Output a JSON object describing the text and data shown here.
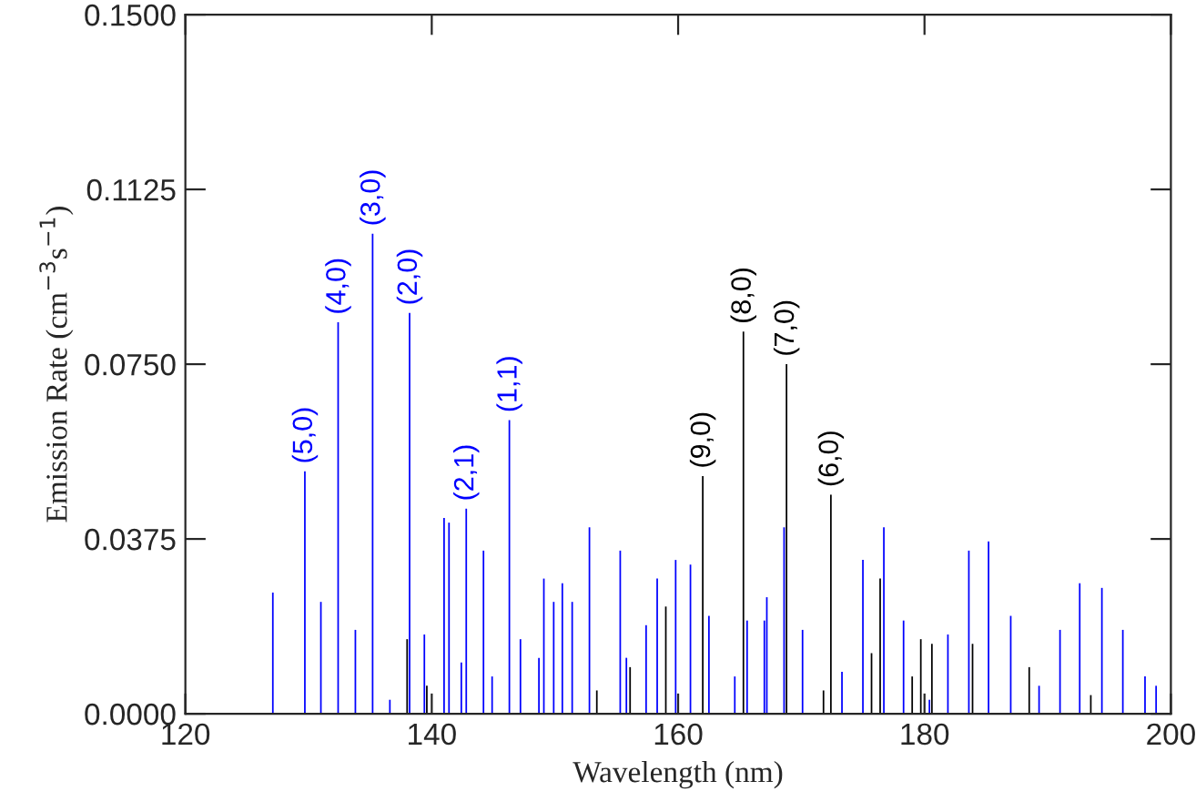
{
  "chart_data": {
    "type": "bar",
    "xlabel": "Wavelength (nm)",
    "ylabel": "Emission Rate (cm$^{−3}$s$^{−1}$)",
    "xlim": [
      120,
      200
    ],
    "xticks": [
      120,
      140,
      160,
      180,
      200
    ],
    "ylim": [
      0,
      0.15
    ],
    "yticks": [
      {
        "value": 0,
        "label": "0.0000"
      },
      {
        "value": 0.0375,
        "label": "0.0375"
      },
      {
        "value": 0.075,
        "label": "0.0750"
      },
      {
        "value": 0.1125,
        "label": "0.1125"
      },
      {
        "value": 0.15,
        "label": "0.1500"
      }
    ],
    "grid": false,
    "series": [
      {
        "color": "#0000ff",
        "x": [
          127.1,
          129.7,
          131.0,
          132.4,
          133.8,
          135.2,
          136.6,
          138.2,
          139.4,
          141.0,
          141.4,
          142.4,
          142.8,
          144.2,
          144.9,
          146.3,
          147.2,
          148.7,
          149.1,
          149.9,
          150.6,
          151.4,
          152.8,
          155.3,
          155.8,
          157.4,
          158.3,
          159.8,
          161.0,
          162.5,
          164.6,
          165.6,
          167.0,
          167.2,
          168.6,
          170.1,
          173.3,
          175.0,
          176.7,
          178.3,
          180.4,
          181.9,
          183.6,
          185.2,
          187.0,
          189.3,
          191.0,
          192.6,
          194.4,
          196.1,
          197.9,
          198.8
        ],
        "values": [
          0.026,
          0.052,
          0.024,
          0.084,
          0.018,
          0.103,
          0.003,
          0.086,
          0.017,
          0.042,
          0.041,
          0.011,
          0.044,
          0.035,
          0.008,
          0.063,
          0.016,
          0.012,
          0.029,
          0.024,
          0.028,
          0.024,
          0.04,
          0.035,
          0.012,
          0.019,
          0.029,
          0.033,
          0.032,
          0.021,
          0.008,
          0.02,
          0.02,
          0.025,
          0.04,
          0.018,
          0.009,
          0.033,
          0.04,
          0.02,
          0.003,
          0.017,
          0.035,
          0.037,
          0.021,
          0.006,
          0.018,
          0.028,
          0.027,
          0.018,
          0.008,
          0.006
        ]
      },
      {
        "color": "#000000",
        "x": [
          138.0,
          139.6,
          153.4,
          156.1,
          159.0,
          162.0,
          165.3,
          168.8,
          171.8,
          172.4,
          175.7,
          176.4,
          179.0,
          179.7,
          180.6,
          183.9,
          188.5,
          193.5
        ],
        "values": [
          0.016,
          0.006,
          0.005,
          0.01,
          0.023,
          0.051,
          0.082,
          0.075,
          0.005,
          0.047,
          0.013,
          0.029,
          0.008,
          0.016,
          0.015,
          0.015,
          0.01,
          0.004
        ]
      }
    ],
    "annotations": [
      {
        "text": "(5,0)",
        "x": 129.7,
        "y": 0.052
      },
      {
        "text": "(4,0)",
        "x": 132.4,
        "y": 0.084
      },
      {
        "text": "(3,0)",
        "x": 135.2,
        "y": 0.103
      },
      {
        "text": "(2,0)",
        "x": 138.2,
        "y": 0.086
      },
      {
        "text": "(2,1)",
        "x": 142.8,
        "y": 0.044
      },
      {
        "text": "(1,1)",
        "x": 146.3,
        "y": 0.063
      },
      {
        "text": "(9,0)",
        "x": 162.0,
        "y": 0.051
      },
      {
        "text": "(8,0)",
        "x": 165.3,
        "y": 0.082
      },
      {
        "text": "(7,0)",
        "x": 168.8,
        "y": 0.075
      },
      {
        "text": "(6,0)",
        "x": 172.4,
        "y": 0.047
      }
    ]
  }
}
